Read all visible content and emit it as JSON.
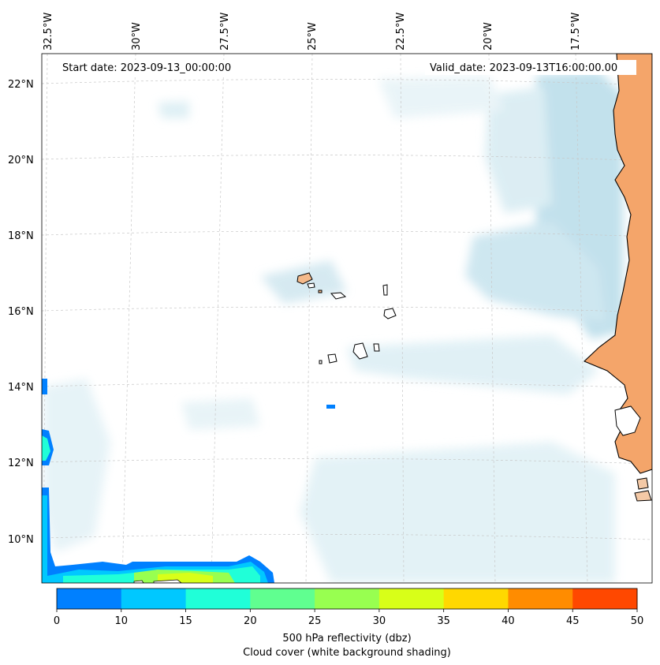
{
  "map": {
    "start_label": "Start date: 2023-09-13_00:00:00",
    "valid_label": "Valid_date: 2023-09-13T16:00:00.00",
    "lon_labels": [
      "32.5°W",
      "30°W",
      "27.5°W",
      "25°W",
      "22.5°W",
      "20°W",
      "17.5°W"
    ],
    "lat_labels": [
      "22°N",
      "20°N",
      "18°N",
      "16°N",
      "14°N",
      "12°N",
      "10°N"
    ]
  },
  "colorbar": {
    "ticks": [
      "0",
      "10",
      "15",
      "20",
      "25",
      "30",
      "35",
      "40",
      "45",
      "50"
    ],
    "colors": [
      "#0080ff",
      "#00c8ff",
      "#20ffd8",
      "#60ff90",
      "#98ff50",
      "#d8ff18",
      "#ffd800",
      "#ff8c00",
      "#ff4800"
    ],
    "label_line1": "500 hPa reflectivity (dbz)",
    "label_line2": "Cloud cover (white background shading)"
  },
  "colors": {
    "land": "#f4a56a",
    "cloud": "#cfe8f0",
    "grid": "#c8c8c8"
  }
}
